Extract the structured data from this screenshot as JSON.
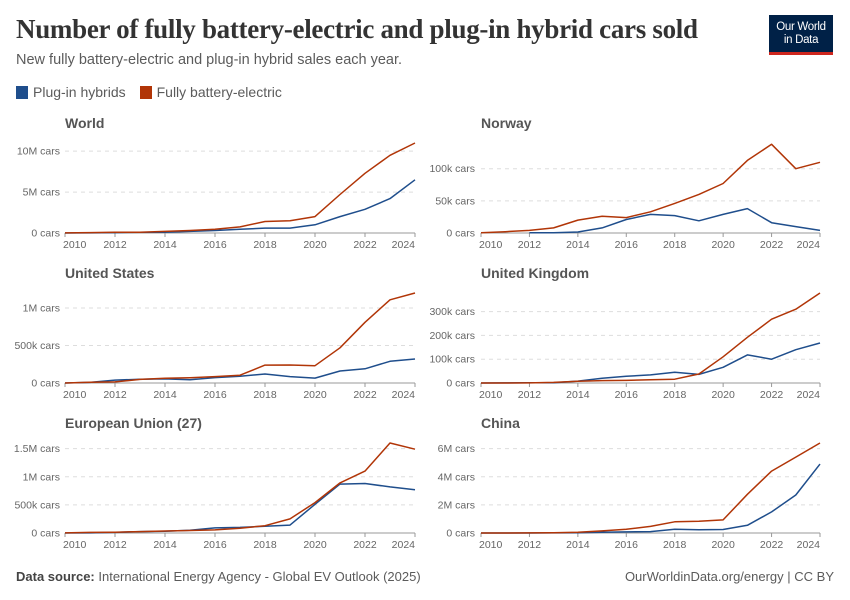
{
  "header": {
    "title": "Number of fully battery-electric and plug-in hybrid cars sold",
    "subtitle": "New fully battery-electric and plug-in hybrid sales each year.",
    "logo_line1": "Our World",
    "logo_line2": "in Data"
  },
  "legend": [
    {
      "label": "Plug-in hybrids",
      "color": "#1f4e8c"
    },
    {
      "label": "Fully battery-electric",
      "color": "#b13507"
    }
  ],
  "footer": {
    "source_label": "Data source:",
    "source_text": " International Energy Agency - Global EV Outlook (2025)",
    "credit": "OurWorldinData.org/energy | CC BY"
  },
  "chart_data": {
    "type": "line",
    "x": [
      2010,
      2011,
      2012,
      2013,
      2014,
      2015,
      2016,
      2017,
      2018,
      2019,
      2020,
      2021,
      2022,
      2023,
      2024
    ],
    "xticks": [
      "2010",
      "2012",
      "2014",
      "2016",
      "2018",
      "2020",
      "2022",
      "2024"
    ],
    "grid": "horizontal dashed",
    "legend_placement": "top-left",
    "panels": [
      {
        "title": "World",
        "units": "M cars",
        "ylim": [
          0,
          11
        ],
        "yticks": [
          {
            "value": 0,
            "label": "0 cars"
          },
          {
            "value": 5,
            "label": "5M cars"
          },
          {
            "value": 10,
            "label": "10M cars"
          }
        ],
        "series": [
          {
            "name": "Plug-in hybrids",
            "values": [
              0,
              0.01,
              0.05,
              0.1,
              0.1,
              0.2,
              0.3,
              0.45,
              0.6,
              0.6,
              1.0,
              2.0,
              2.9,
              4.2,
              6.5
            ]
          },
          {
            "name": "Fully battery-electric",
            "values": [
              0.01,
              0.05,
              0.1,
              0.1,
              0.2,
              0.3,
              0.45,
              0.75,
              1.4,
              1.5,
              2.0,
              4.7,
              7.3,
              9.5,
              11.0
            ]
          }
        ]
      },
      {
        "title": "Norway",
        "units": "k cars",
        "ylim": [
          0,
          140
        ],
        "yticks": [
          {
            "value": 0,
            "label": "0 cars"
          },
          {
            "value": 50,
            "label": "50k cars"
          },
          {
            "value": 100,
            "label": "100k cars"
          }
        ],
        "series": [
          {
            "name": "Plug-in hybrids",
            "values": [
              null,
              null,
              0.3,
              0.5,
              1.5,
              8,
              21,
              29,
              27,
              19,
              29,
              38,
              16,
              10,
              4
            ]
          },
          {
            "name": "Fully battery-electric",
            "values": [
              0.4,
              2,
              4,
              8,
              20,
              26,
              24,
              33,
              46,
              60,
              77,
              113,
              138,
              100,
              110
            ]
          }
        ]
      },
      {
        "title": "United States",
        "units": "k cars",
        "ylim": [
          0,
          1200
        ],
        "yticks": [
          {
            "value": 0,
            "label": "0 cars"
          },
          {
            "value": 500,
            "label": "500k cars"
          },
          {
            "value": 1000,
            "label": "1M cars"
          }
        ],
        "series": [
          {
            "name": "Plug-in hybrids",
            "values": [
              0,
              8,
              38,
              49,
              55,
              43,
              72,
              91,
              120,
              86,
              65,
              160,
              190,
              290,
              320
            ]
          },
          {
            "name": "Fully battery-electric",
            "values": [
              0,
              10,
              15,
              48,
              63,
              71,
              86,
              104,
              238,
              240,
              231,
              470,
              810,
              1110,
              1200
            ]
          }
        ]
      },
      {
        "title": "United Kingdom",
        "units": "k cars",
        "ylim": [
          0,
          378
        ],
        "yticks": [
          {
            "value": 0,
            "label": "0 cars"
          },
          {
            "value": 100,
            "label": "100k cars"
          },
          {
            "value": 200,
            "label": "200k cars"
          },
          {
            "value": 300,
            "label": "300k cars"
          }
        ],
        "series": [
          {
            "name": "Plug-in hybrids",
            "values": [
              0,
              0.5,
              1,
              1,
              8,
              20,
              28,
              34,
              45,
              36,
              66,
              118,
              100,
              140,
              168
            ]
          },
          {
            "name": "Fully battery-electric",
            "values": [
              0,
              0.2,
              0.3,
              2.5,
              7,
              10,
              11,
              14,
              16,
              38,
              110,
              192,
              268,
              310,
              378
            ]
          }
        ]
      },
      {
        "title": "European Union (27)",
        "units": "k cars",
        "ylim": [
          0,
          1600
        ],
        "yticks": [
          {
            "value": 0,
            "label": "0 cars"
          },
          {
            "value": 500,
            "label": "500k cars"
          },
          {
            "value": 1000,
            "label": "1M cars"
          },
          {
            "value": 1500,
            "label": "1.5M cars"
          }
        ],
        "series": [
          {
            "name": "Plug-in hybrids",
            "values": [
              0,
              2,
              10,
              25,
              30,
              50,
              90,
              100,
              120,
              140,
              510,
              870,
              880,
              820,
              770
            ]
          },
          {
            "name": "Fully battery-electric",
            "values": [
              2,
              10,
              15,
              25,
              35,
              45,
              55,
              85,
              130,
              250,
              540,
              890,
              1100,
              1600,
              1490
            ]
          }
        ]
      },
      {
        "title": "China",
        "units": "M cars",
        "ylim": [
          0,
          6.4
        ],
        "yticks": [
          {
            "value": 0,
            "label": "0 cars"
          },
          {
            "value": 2,
            "label": "2M cars"
          },
          {
            "value": 4,
            "label": "4M cars"
          },
          {
            "value": 6,
            "label": "6M cars"
          }
        ],
        "series": [
          {
            "name": "Plug-in hybrids",
            "values": [
              0,
              0,
              0,
              0.01,
              0.02,
              0.05,
              0.08,
              0.1,
              0.27,
              0.23,
              0.25,
              0.55,
              1.5,
              2.7,
              4.9
            ]
          },
          {
            "name": "Fully battery-electric",
            "values": [
              0,
              0,
              0.01,
              0.02,
              0.05,
              0.15,
              0.26,
              0.47,
              0.8,
              0.83,
              0.93,
              2.75,
              4.4,
              5.4,
              6.4
            ]
          }
        ]
      }
    ]
  }
}
